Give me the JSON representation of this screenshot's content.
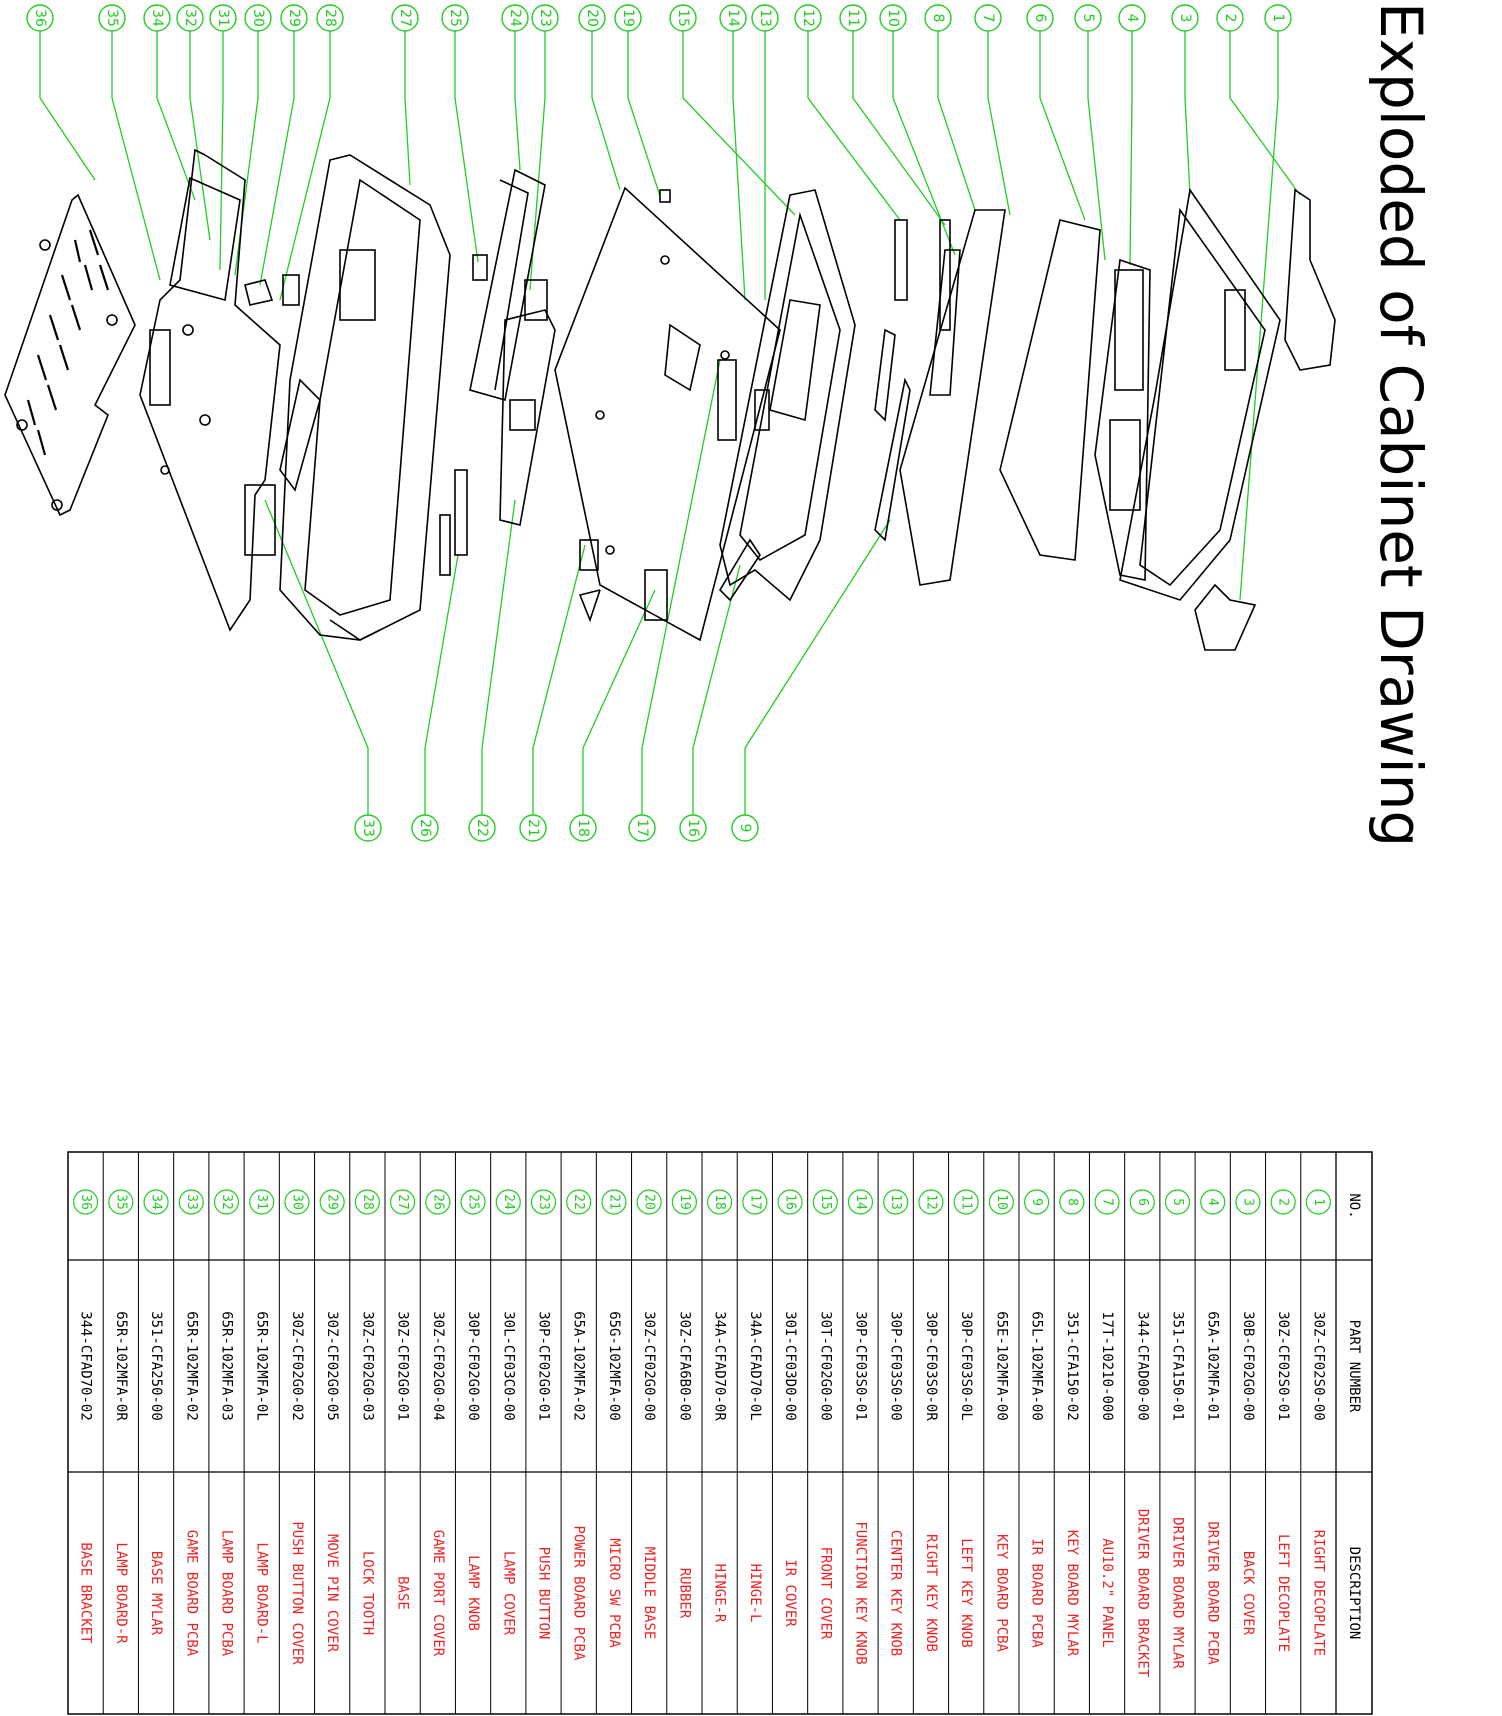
{
  "title": "Exploded of Cabinet Drawing",
  "colors": {
    "callout": "#22cc22",
    "description": "#ee2222",
    "line": "#000000"
  },
  "table": {
    "headers": {
      "no": "NO.",
      "part_number": "PART NUMBER",
      "description": "DESCRIPTION"
    },
    "rows": [
      {
        "no": "1",
        "part": "30Z-CF02S0-00",
        "desc": "RIGHT DECOPLATE"
      },
      {
        "no": "2",
        "part": "30Z-CF02S0-01",
        "desc": "LEFT DECOPLATE"
      },
      {
        "no": "3",
        "part": "30B-CF02G0-00",
        "desc": "BACK COVER"
      },
      {
        "no": "4",
        "part": "65A-102MFA-01",
        "desc": "DRIVER BOARD PCBA"
      },
      {
        "no": "5",
        "part": "351-CFA150-01",
        "desc": "DRIVER BOARD MYLAR"
      },
      {
        "no": "6",
        "part": "344-CFAD00-00",
        "desc": "DRIVER BOARD BRACKET"
      },
      {
        "no": "7",
        "part": "17T-10210-000",
        "desc": "AU10.2\" PANEL"
      },
      {
        "no": "8",
        "part": "351-CFA150-02",
        "desc": "KEY BOARD MYLAR"
      },
      {
        "no": "9",
        "part": "65L-102MFA-00",
        "desc": "IR BOARD PCBA"
      },
      {
        "no": "10",
        "part": "65E-102MFA-00",
        "desc": "KEY BOARD PCBA"
      },
      {
        "no": "11",
        "part": "30P-CF03S0-0L",
        "desc": "LEFT KEY KNOB"
      },
      {
        "no": "12",
        "part": "30P-CF03S0-0R",
        "desc": "RIGHT KEY KNOB"
      },
      {
        "no": "13",
        "part": "30P-CF03S0-00",
        "desc": "CENTER KEY KNOB"
      },
      {
        "no": "14",
        "part": "30P-CF03S0-01",
        "desc": "FUNCTION KEY KNOB"
      },
      {
        "no": "15",
        "part": "30T-CF02G0-00",
        "desc": "FRONT COVER"
      },
      {
        "no": "16",
        "part": "30I-CF03D0-00",
        "desc": "IR COVER"
      },
      {
        "no": "17",
        "part": "34A-CFAD70-0L",
        "desc": "HINGE-L"
      },
      {
        "no": "18",
        "part": "34A-CFAD70-0R",
        "desc": "HINGE-R"
      },
      {
        "no": "19",
        "part": "30Z-CFA6B0-00",
        "desc": "RUBBER"
      },
      {
        "no": "20",
        "part": "30Z-CF02G0-00",
        "desc": "MIDDLE BASE"
      },
      {
        "no": "21",
        "part": "65G-102MFA-00",
        "desc": "MICRO SW PCBA"
      },
      {
        "no": "22",
        "part": "65A-102MFA-02",
        "desc": "POWER BOARD PCBA"
      },
      {
        "no": "23",
        "part": "30P-CF02G0-01",
        "desc": "PUSH BUTTON"
      },
      {
        "no": "24",
        "part": "30L-CF03C0-00",
        "desc": "LAMP COVER"
      },
      {
        "no": "25",
        "part": "30P-CF02G0-00",
        "desc": "LAMP KNOB"
      },
      {
        "no": "26",
        "part": "30Z-CF02G0-04",
        "desc": "GAME PORT COVER"
      },
      {
        "no": "27",
        "part": "30Z-CF02G0-01",
        "desc": "BASE"
      },
      {
        "no": "28",
        "part": "30Z-CF02G0-03",
        "desc": "LOCK TOOTH"
      },
      {
        "no": "29",
        "part": "30Z-CF02G0-05",
        "desc": "MOVE PIN COVER"
      },
      {
        "no": "30",
        "part": "30Z-CF02G0-02",
        "desc": "PUSH BUTTON COVER"
      },
      {
        "no": "31",
        "part": "65R-102MFA-0L",
        "desc": "LAMP BOARD-L"
      },
      {
        "no": "32",
        "part": "65R-102MFA-03",
        "desc": "LAMP BOARD PCBA"
      },
      {
        "no": "33",
        "part": "65R-102MFA-02",
        "desc": "GAME BOARD PCBA"
      },
      {
        "no": "34",
        "part": "351-CFA250-00",
        "desc": "BASE MYLAR"
      },
      {
        "no": "35",
        "part": "65R-102MFA-0R",
        "desc": "LAMP BOARD-R"
      },
      {
        "no": "36",
        "part": "344-CFAD70-02",
        "desc": "BASE BRACKET"
      }
    ]
  },
  "callouts": {
    "top": [
      "1",
      "2",
      "3",
      "4",
      "5",
      "6",
      "7",
      "8",
      "10",
      "11",
      "12",
      "13",
      "14",
      "15",
      "19",
      "20",
      "23",
      "24",
      "25",
      "27",
      "28",
      "29",
      "30",
      "31",
      "32",
      "34",
      "35",
      "36"
    ],
    "bottom": [
      "9",
      "16",
      "17",
      "18",
      "21",
      "22",
      "26",
      "33"
    ]
  }
}
